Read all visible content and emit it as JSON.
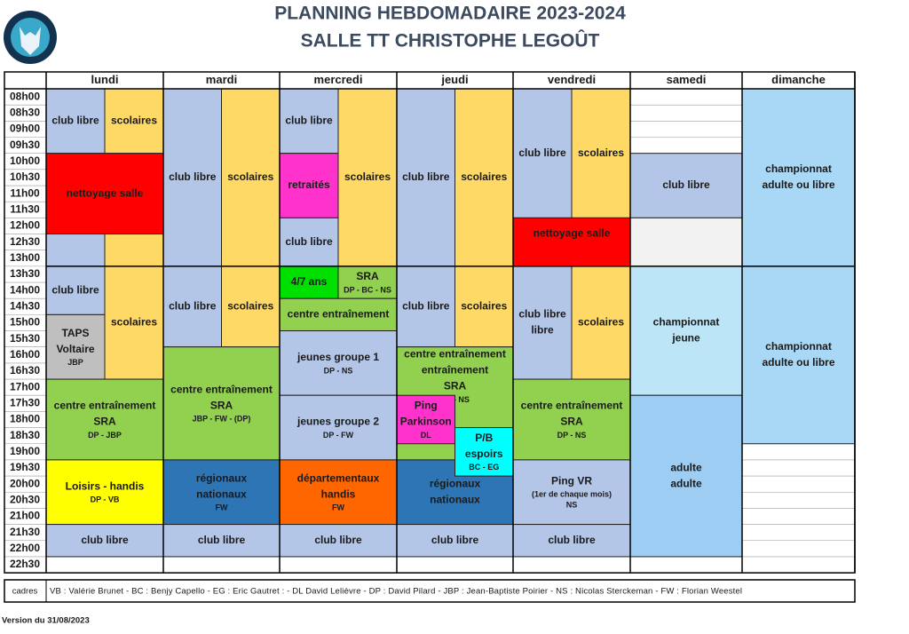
{
  "header": {
    "title_lines": [
      "PLANNING HEBDOMADAIRE 2023-2024",
      "SALLE TT CHRISTOPHE LEGOÛT"
    ]
  },
  "table": {
    "days": [
      "lundi",
      "mardi",
      "mercredi",
      "jeudi",
      "vendredi",
      "samedi",
      "dimanche"
    ],
    "times": [
      "08h00",
      "08h30",
      "09h00",
      "09h30",
      "10h00",
      "10h30",
      "11h00",
      "11h30",
      "12h00",
      "12h30",
      "13h00",
      "13h30",
      "14h00",
      "14h30",
      "15h00",
      "15h30",
      "16h00",
      "16h30",
      "17h00",
      "17h30",
      "18h00",
      "18h30",
      "19h00",
      "19h30",
      "20h00",
      "20h30",
      "21h00",
      "21h30",
      "22h00",
      "22h30"
    ],
    "cadres_label": "cadres",
    "cadres": "VB : Valérie Brunet - BC : Benjy Capello - EG : Eric Gautret : - DL David Lelièvre - DP : David Pilard - JBP : Jean-Baptiste Poirier - NS : Nicolas Sterckeman - FW : Florian Weestel"
  },
  "events": [
    {
      "lines": [
        "club libre"
      ],
      "color": "#b4c6e7"
    },
    {
      "lines": [
        "scolaires"
      ],
      "color": "#ffd966"
    },
    {
      "lines": [
        "nettoyage salle"
      ],
      "color": "#ff0000"
    },
    {
      "color": "#b4c6e7"
    },
    {
      "color": "#ffd966"
    },
    {
      "lines": [
        "club libre"
      ],
      "color": "#b4c6e7"
    },
    {
      "lines": [
        "TAPS",
        "Voltaire"
      ],
      "small": [
        "JBP"
      ],
      "color": "#bfbfbf"
    },
    {
      "lines": [
        "scolaires"
      ],
      "color": "#ffd966"
    },
    {
      "lines": [
        "centre entraînement",
        "SRA"
      ],
      "small": [
        "DP - JBP"
      ],
      "color": "#92d050"
    },
    {
      "lines": [
        "Loisirs - handis"
      ],
      "small": [
        "DP - VB"
      ],
      "color": "#ffff00"
    },
    {
      "lines": [
        "club libre"
      ],
      "color": "#b4c6e7"
    },
    {
      "lines": [
        "club libre"
      ],
      "color": "#b4c6e7"
    },
    {
      "lines": [
        "scolaires"
      ],
      "color": "#ffd966"
    },
    {
      "lines": [
        "club libre"
      ],
      "color": "#b4c6e7"
    },
    {
      "lines": [
        "scolaires"
      ],
      "color": "#ffd966"
    },
    {
      "lines": [
        "centre entraînement",
        "SRA"
      ],
      "small": [
        "JBP - FW - (DP)"
      ],
      "color": "#92d050"
    },
    {
      "lines": [
        "régionaux",
        "nationaux"
      ],
      "small": [
        "FW"
      ],
      "color": "#2e75b6"
    },
    {
      "lines": [
        "club libre"
      ],
      "color": "#b4c6e7"
    },
    {
      "lines": [
        "club libre"
      ],
      "color": "#b4c6e7"
    },
    {
      "lines": [
        "retraités"
      ],
      "color": "#ff33cc"
    },
    {
      "lines": [
        "club libre"
      ],
      "color": "#b4c6e7"
    },
    {
      "lines": [
        "scolaires"
      ],
      "color": "#ffd966"
    },
    {
      "lines": [
        "4/7 ans"
      ],
      "color": "#00e000"
    },
    {
      "lines": [
        "SRA"
      ],
      "small": [
        "DP - BC - NS"
      ],
      "color": "#92d050"
    },
    {
      "lines": [
        "centre entraînement"
      ],
      "color": "#92d050"
    },
    {
      "lines": [
        "jeunes groupe 1"
      ],
      "small": [
        "DP - NS"
      ],
      "color": "#b4c6e7"
    },
    {
      "lines": [
        "jeunes groupe 2"
      ],
      "small": [
        "DP - FW"
      ],
      "color": "#b4c6e7"
    },
    {
      "lines": [
        "départementaux",
        "handis"
      ],
      "small": [
        "FW"
      ],
      "color": "#ff6600"
    },
    {
      "lines": [
        "club libre"
      ],
      "color": "#b4c6e7"
    },
    {
      "lines": [
        "club libre"
      ],
      "color": "#b4c6e7"
    },
    {
      "lines": [
        "scolaires"
      ],
      "color": "#ffd966"
    },
    {
      "lines": [
        "club libre"
      ],
      "color": "#b4c6e7"
    },
    {
      "lines": [
        "scolaires"
      ],
      "color": "#ffd966"
    },
    {
      "lines": [
        "centre entraînement",
        "entraînement",
        "SRA"
      ],
      "small": [
        "DP - NS"
      ],
      "color": "#92d050"
    },
    {
      "lines": [
        "Ping",
        "Parkinson"
      ],
      "small": [
        "DL"
      ],
      "color": "#ff33cc"
    },
    {
      "lines": [
        "régionaux",
        "nationaux"
      ],
      "color": "#2e75b6"
    },
    {
      "lines": [
        "P/B",
        "espoirs"
      ],
      "small": [
        "BC - EG"
      ],
      "color": "#00ffff"
    },
    {
      "lines": [
        "club libre"
      ],
      "color": "#b4c6e7"
    },
    {
      "lines": [
        "club libre"
      ],
      "color": "#b4c6e7"
    },
    {
      "lines": [
        "scolaires"
      ],
      "color": "#ffd966"
    },
    {
      "lines": [
        "nettoyage salle"
      ],
      "color": "#ff0000"
    },
    {
      "lines": [
        "club libre",
        "libre"
      ],
      "color": "#b4c6e7"
    },
    {
      "lines": [
        "scolaires"
      ],
      "color": "#ffd966"
    },
    {
      "lines": [
        "centre entraînement",
        "SRA"
      ],
      "small": [
        "DP - NS"
      ],
      "color": "#92d050"
    },
    {
      "lines": [
        "Ping VR"
      ],
      "small": [
        "(1er de chaque mois)",
        "NS"
      ],
      "color": "#b4c6e7"
    },
    {
      "lines": [
        "club libre"
      ],
      "color": "#b4c6e7"
    },
    {
      "lines": [
        "club libre"
      ],
      "color": "#b4c6e7"
    },
    {
      "color": "#f2f2f2"
    },
    {
      "lines": [
        "championnat",
        "jeune"
      ],
      "color": "#bde5f8"
    },
    {
      "lines": [
        "adulte",
        "adulte"
      ],
      "color": "#9dcdf2"
    },
    {
      "lines": [
        "championnat",
        "adulte ou libre"
      ],
      "color": "#a9d8f7"
    },
    {
      "lines": [
        "championnat",
        "adulte ou libre"
      ],
      "color": "#a9d8f7"
    }
  ],
  "footer": "Version du 31/08/2023"
}
